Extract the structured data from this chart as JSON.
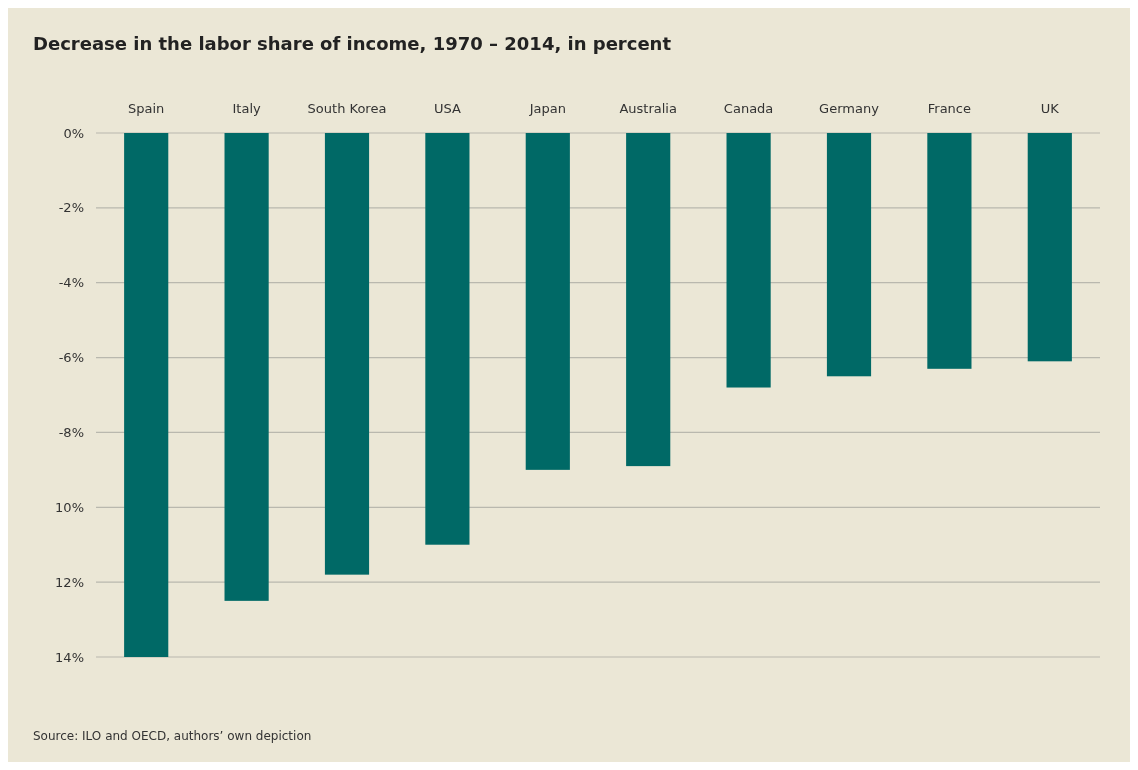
{
  "chart_data": {
    "type": "bar",
    "title": "Decrease in the labor share of income, 1970 – 2014, in percent",
    "categories": [
      "Spain",
      "Italy",
      "South Korea",
      "USA",
      "Japan",
      "Australia",
      "Canada",
      "Germany",
      "France",
      "UK"
    ],
    "values": [
      -14,
      -12.5,
      -11.8,
      -11.0,
      -9.0,
      -8.9,
      -6.8,
      -6.5,
      -6.3,
      -6.1
    ],
    "color": "#006966",
    "ylim": [
      -14,
      0
    ],
    "yticks": [
      {
        "value": 0,
        "label": "0%"
      },
      {
        "value": -2,
        "label": "-2%"
      },
      {
        "value": -4,
        "label": "-4%"
      },
      {
        "value": -6,
        "label": "-6%"
      },
      {
        "value": -8,
        "label": "-8%"
      },
      {
        "value": -10,
        "label": "10%"
      },
      {
        "value": -12,
        "label": "12%"
      },
      {
        "value": -14,
        "label": "14%"
      }
    ],
    "grid": "y",
    "annotations": [
      "Source: ILO and OECD, authors’ own depiction"
    ]
  }
}
